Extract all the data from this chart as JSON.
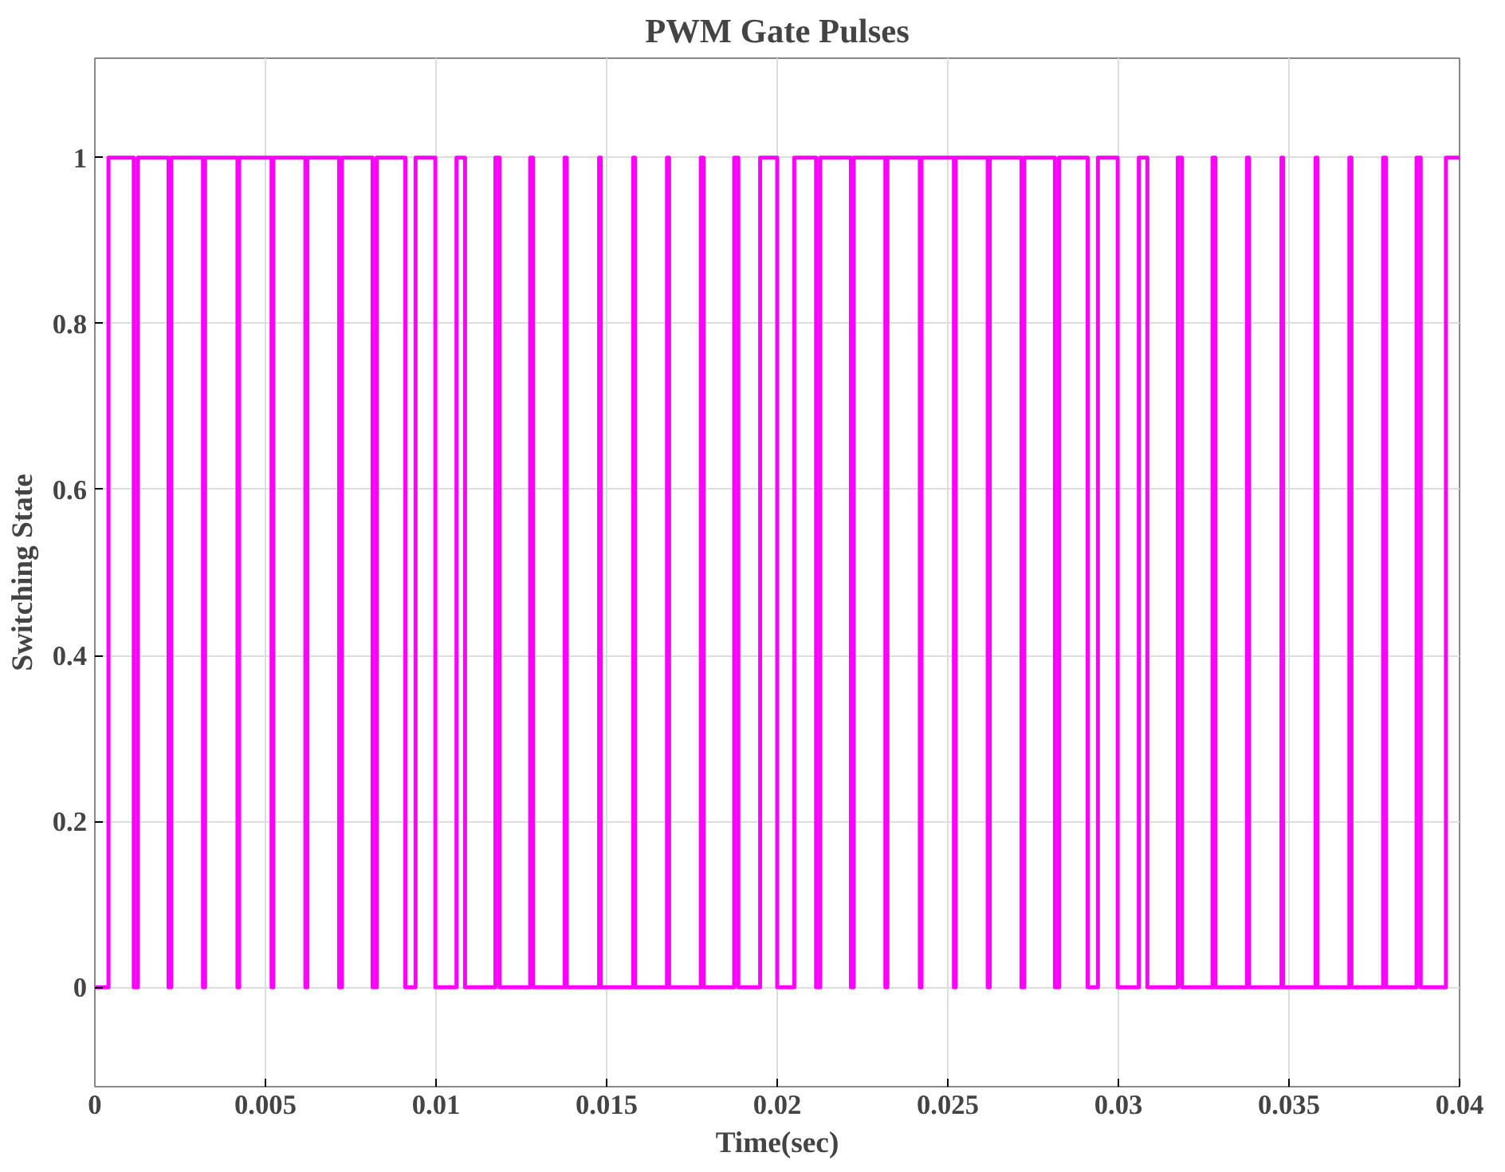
{
  "chart_data": {
    "type": "step",
    "title": "PWM Gate Pulses",
    "xlabel": "Time(sec)",
    "ylabel": "Switching State",
    "xlim": [
      0,
      0.04
    ],
    "ylim": [
      -0.12,
      1.12
    ],
    "xticks": [
      0,
      0.005,
      0.01,
      0.015,
      0.02,
      0.025,
      0.03,
      0.035,
      0.04
    ],
    "yticks": [
      0,
      0.2,
      0.4,
      0.6,
      0.8,
      1
    ],
    "grid": true,
    "line_style": "solid",
    "marker": "none",
    "x": [
      0,
      0.0004,
      0.00114,
      0.00126,
      0.00216,
      0.00224,
      0.00317,
      0.00323,
      0.00418,
      0.00423,
      0.00518,
      0.00523,
      0.00617,
      0.00623,
      0.00716,
      0.00724,
      0.00814,
      0.00826,
      0.0091,
      0.0094,
      0.00998,
      0.0106,
      0.01085,
      0.01174,
      0.01186,
      0.01276,
      0.01284,
      0.01377,
      0.01383,
      0.01478,
      0.01483,
      0.01578,
      0.01583,
      0.01677,
      0.01683,
      0.01776,
      0.01784,
      0.01874,
      0.01886,
      0.0195,
      0.02,
      0.0205,
      0.02114,
      0.02126,
      0.02216,
      0.02224,
      0.02317,
      0.02323,
      0.02418,
      0.02423,
      0.02518,
      0.02523,
      0.02617,
      0.02623,
      0.02716,
      0.02724,
      0.02814,
      0.02826,
      0.0291,
      0.0294,
      0.02998,
      0.0306,
      0.03085,
      0.03174,
      0.03186,
      0.03276,
      0.03284,
      0.03377,
      0.03383,
      0.03478,
      0.03483,
      0.03578,
      0.03583,
      0.03677,
      0.03683,
      0.03776,
      0.03784,
      0.03874,
      0.03886,
      0.0396,
      0.04
    ],
    "series": [
      {
        "color": "#ff00ff",
        "values": [
          0,
          1,
          0,
          1,
          0,
          1,
          0,
          1,
          0,
          1,
          0,
          1,
          0,
          1,
          0,
          1,
          0,
          1,
          0,
          1,
          0,
          1,
          0,
          1,
          0,
          1,
          0,
          1,
          0,
          1,
          0,
          1,
          0,
          1,
          0,
          1,
          0,
          1,
          0,
          1,
          0,
          1,
          0,
          1,
          0,
          1,
          0,
          1,
          0,
          1,
          0,
          1,
          0,
          1,
          0,
          1,
          0,
          1,
          0,
          1,
          0,
          1,
          0,
          1,
          0,
          1,
          0,
          1,
          0,
          1,
          0,
          1,
          0,
          1,
          0,
          1,
          0,
          1,
          0,
          1,
          1
        ]
      }
    ]
  }
}
